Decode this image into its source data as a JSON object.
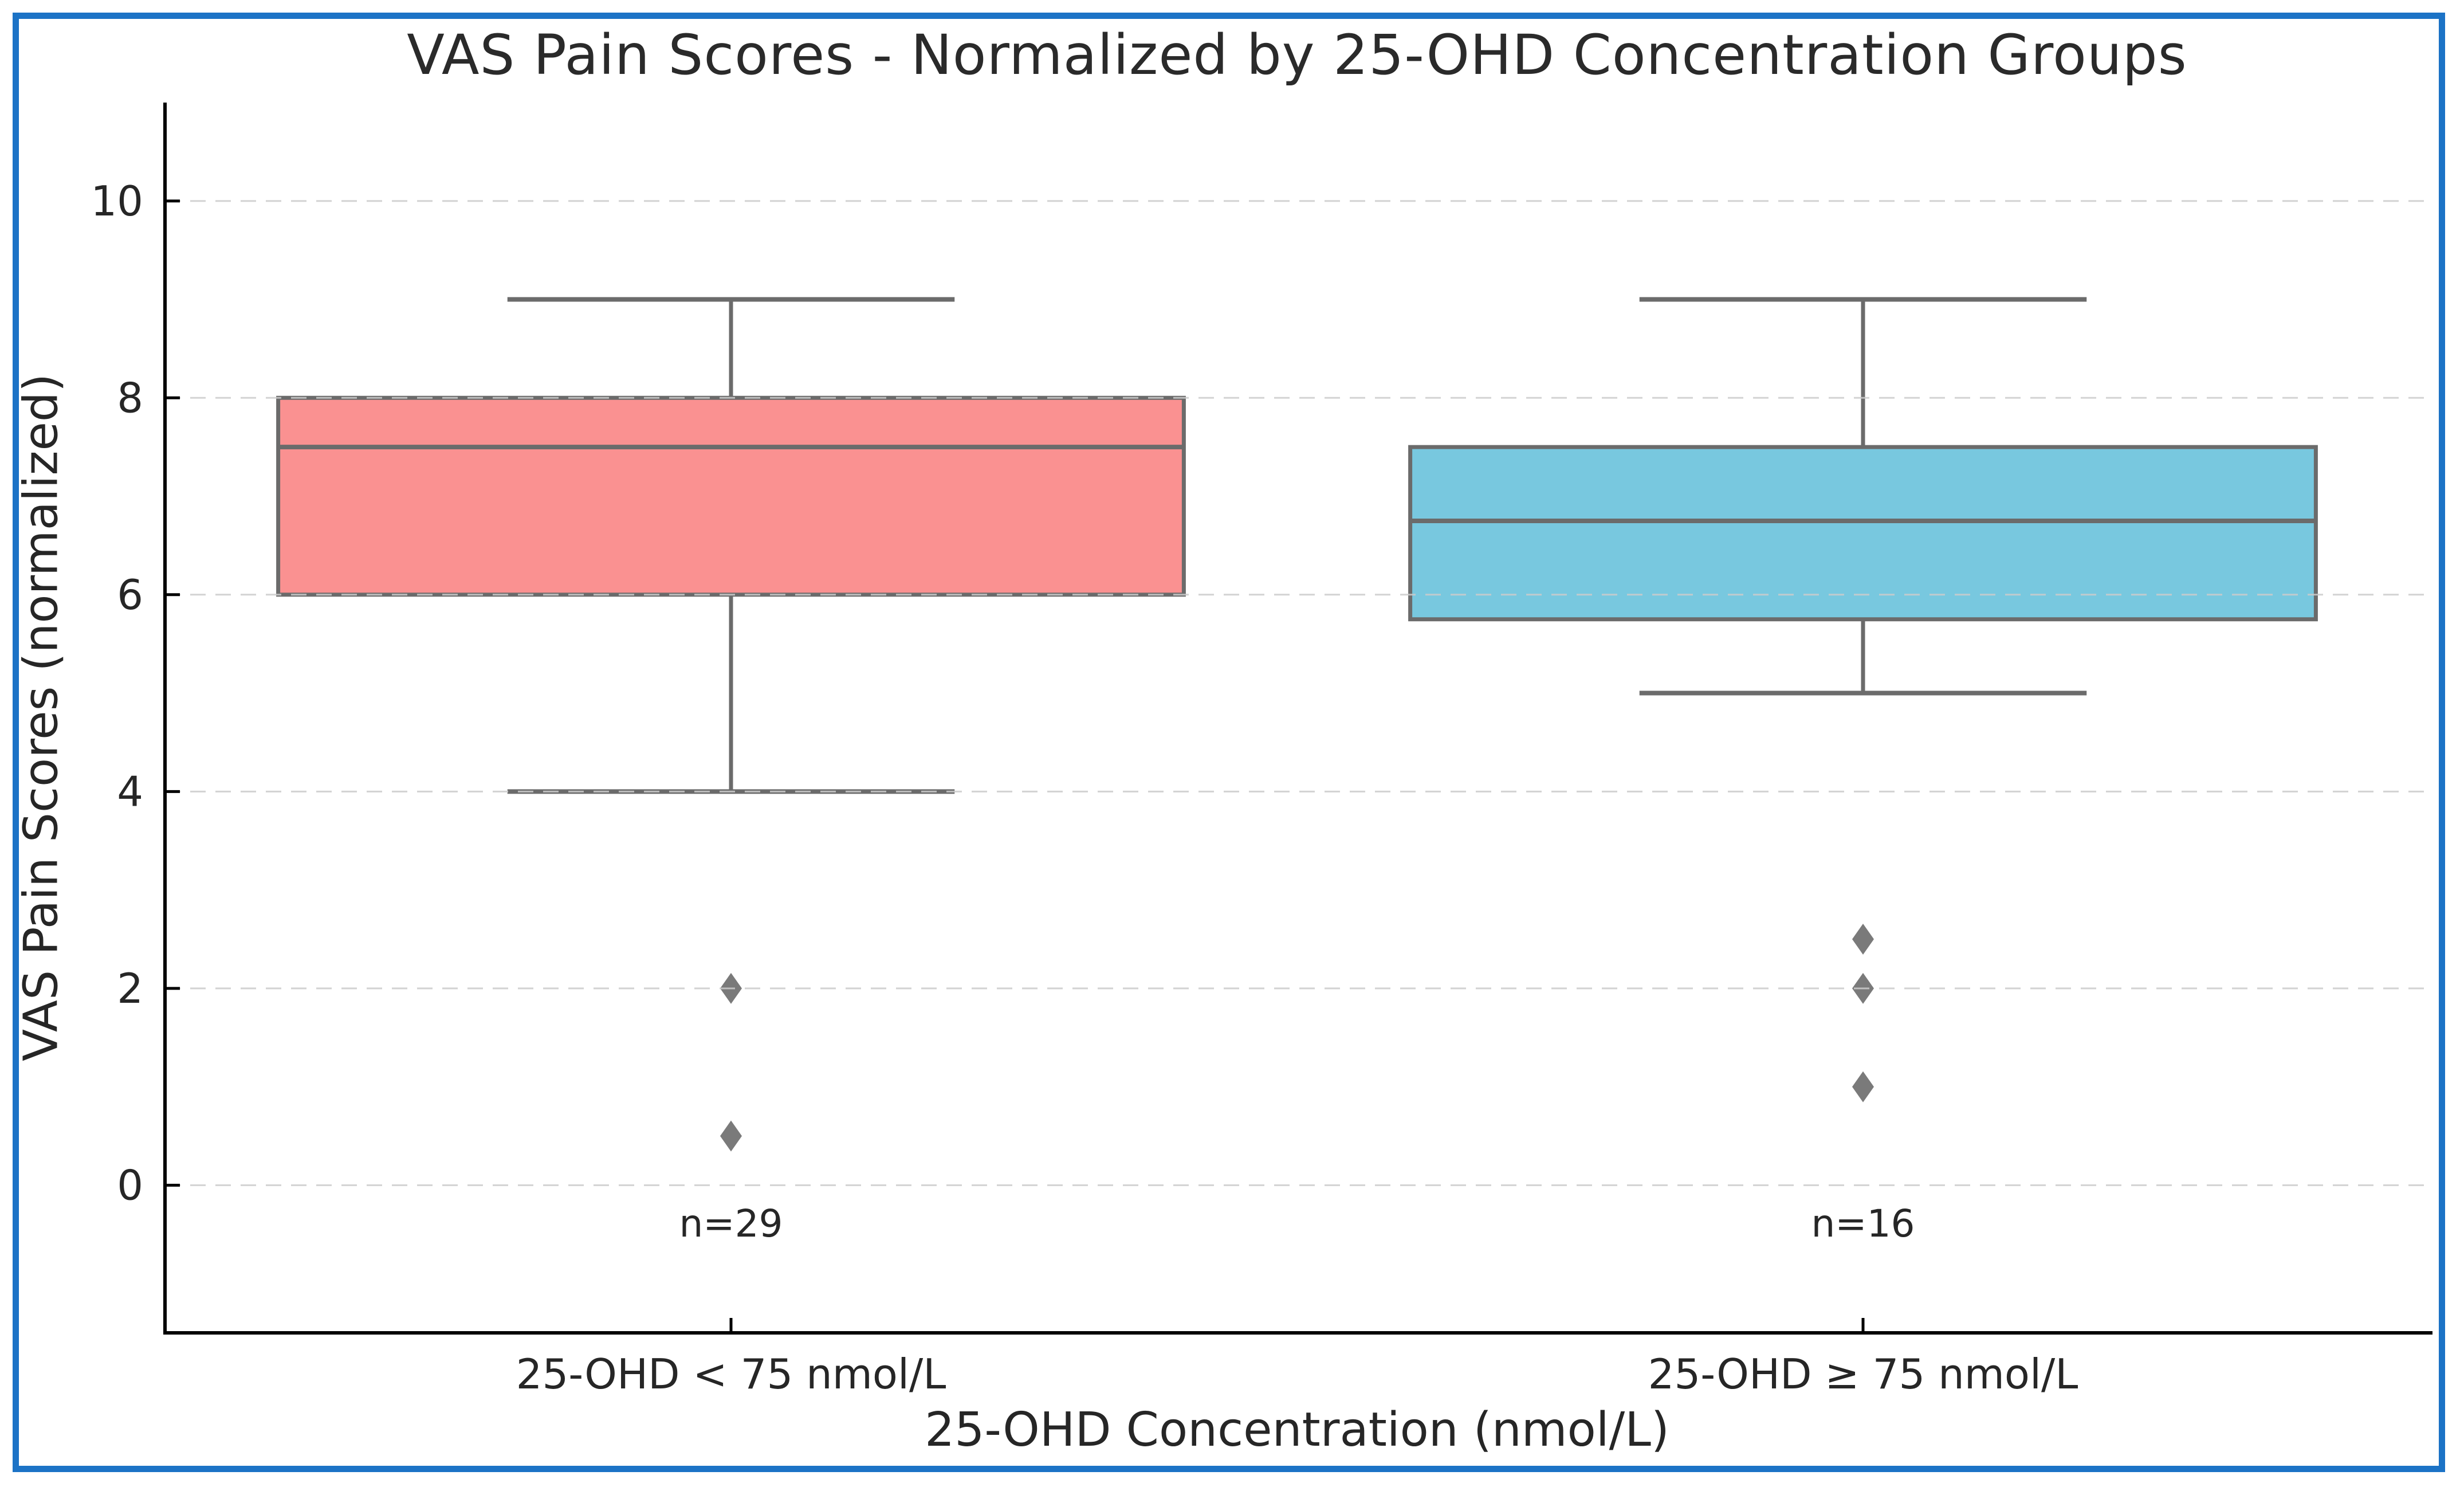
{
  "chart_data": {
    "type": "box",
    "title": "VAS Pain Scores - Normalized by 25-OHD Concentration Groups",
    "xlabel": "25-OHD Concentration (nmol/L)",
    "ylabel": "VAS Pain Scores (normalized)",
    "ylim": [
      -1.5,
      11
    ],
    "yticks": [
      0,
      2,
      4,
      6,
      8,
      10
    ],
    "grid": "horizontal dashed lines at yticks",
    "legend_position": "none",
    "categories": [
      "25-OHD < 75 nmol/L",
      "25-OHD ≥ 75 nmol/L"
    ],
    "series": [
      {
        "category": "25-OHD < 75 nmol/L",
        "n_label": "n=29",
        "box_color": "#FA9191",
        "whisker_low": 4,
        "q1": 6,
        "median": 7.5,
        "q3": 8,
        "whisker_high": 9,
        "outliers": [
          2,
          0.5
        ]
      },
      {
        "category": "25-OHD ≥ 75 nmol/L",
        "n_label": "n=16",
        "box_color": "#78C8DF",
        "whisker_low": 5,
        "q1": 5.75,
        "median": 6.75,
        "q3": 7.5,
        "whisker_high": 9,
        "outliers": [
          2.5,
          2,
          1
        ]
      }
    ],
    "colors": {
      "frame_border": "#1C73C6",
      "box_line": "#6B6B6B",
      "outlier_marker": "#7A7A7A",
      "gridline": "#CBCBCB",
      "spine": "#000000",
      "text": "#262626"
    }
  }
}
